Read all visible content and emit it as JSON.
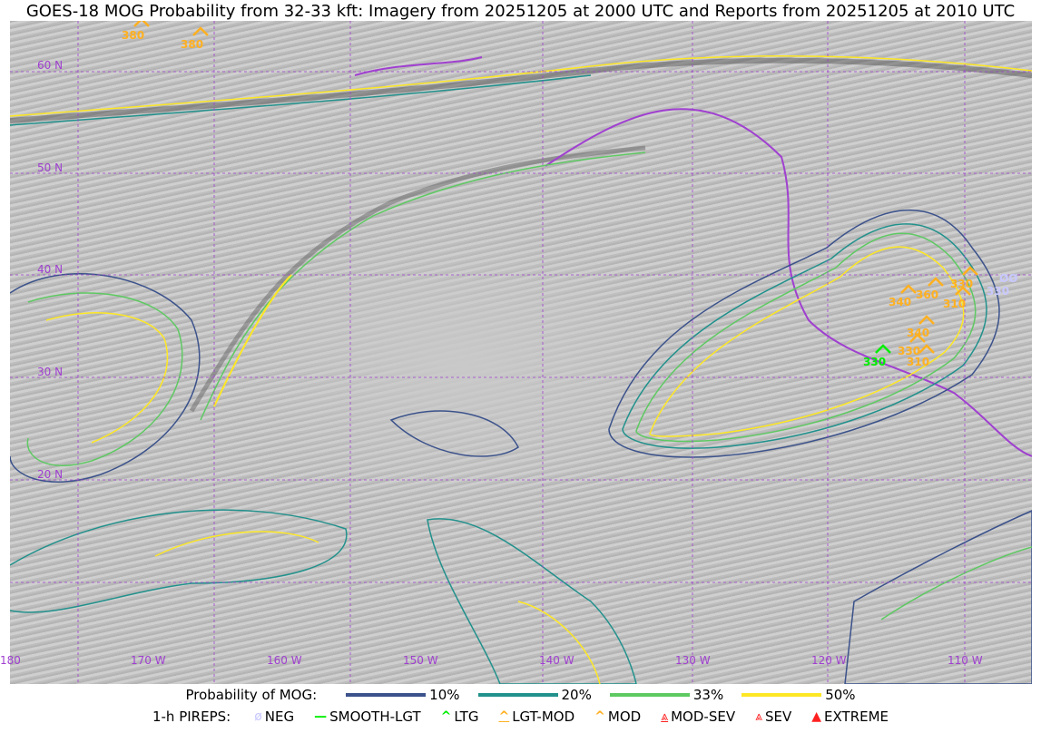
{
  "title": "GOES-18 MOG Probability from 32-33 kft: Imagery from 20251205 at 2000 UTC and Reports from 20251205 at 2010 UTC",
  "map": {
    "lat_labels": [
      "60 N",
      "50 N",
      "40 N",
      "30 N",
      "20 N"
    ],
    "lon_labels": [
      "180",
      "170 W",
      "160 W",
      "150 W",
      "140 W",
      "130 W",
      "120 W",
      "110 W"
    ],
    "grid_color": "#a040d0",
    "pireps": [
      {
        "type": "MOD",
        "alt": "380"
      },
      {
        "type": "MOD",
        "alt": "380"
      },
      {
        "type": "MOD",
        "alt": "340"
      },
      {
        "type": "MOD",
        "alt": "360"
      },
      {
        "type": "MOD",
        "alt": "330"
      },
      {
        "type": "MOD",
        "alt": "310"
      },
      {
        "type": "MOD",
        "alt": "340"
      },
      {
        "type": "MOD",
        "alt": "330"
      },
      {
        "type": "MOD",
        "alt": "310"
      },
      {
        "type": "LTG",
        "alt": "330"
      },
      {
        "type": "NEG",
        "alt": "330"
      }
    ]
  },
  "legend": {
    "prob_label": "Probability of MOG:",
    "prob_levels": [
      {
        "label": "10%",
        "color": "#3b528b"
      },
      {
        "label": "20%",
        "color": "#21918c"
      },
      {
        "label": "33%",
        "color": "#5ec962"
      },
      {
        "label": "50%",
        "color": "#fde725"
      }
    ],
    "pirep_label": "1-h PIREPS:",
    "pirep_types": [
      {
        "label": "NEG",
        "color": "#c8c8ff",
        "icon": "null-circle"
      },
      {
        "label": "SMOOTH-LGT",
        "color": "#00ee00",
        "icon": "dash"
      },
      {
        "label": "LTG",
        "color": "#00ee00",
        "icon": "caret"
      },
      {
        "label": "LGT-MOD",
        "color": "#ffb020",
        "icon": "caret-bar"
      },
      {
        "label": "MOD",
        "color": "#ffb020",
        "icon": "caret"
      },
      {
        "label": "MOD-SEV",
        "color": "#ff2020",
        "icon": "double-caret-bar"
      },
      {
        "label": "SEV",
        "color": "#ff2020",
        "icon": "double-caret"
      },
      {
        "label": "EXTREME",
        "color": "#ff2020",
        "icon": "triangle"
      }
    ]
  }
}
